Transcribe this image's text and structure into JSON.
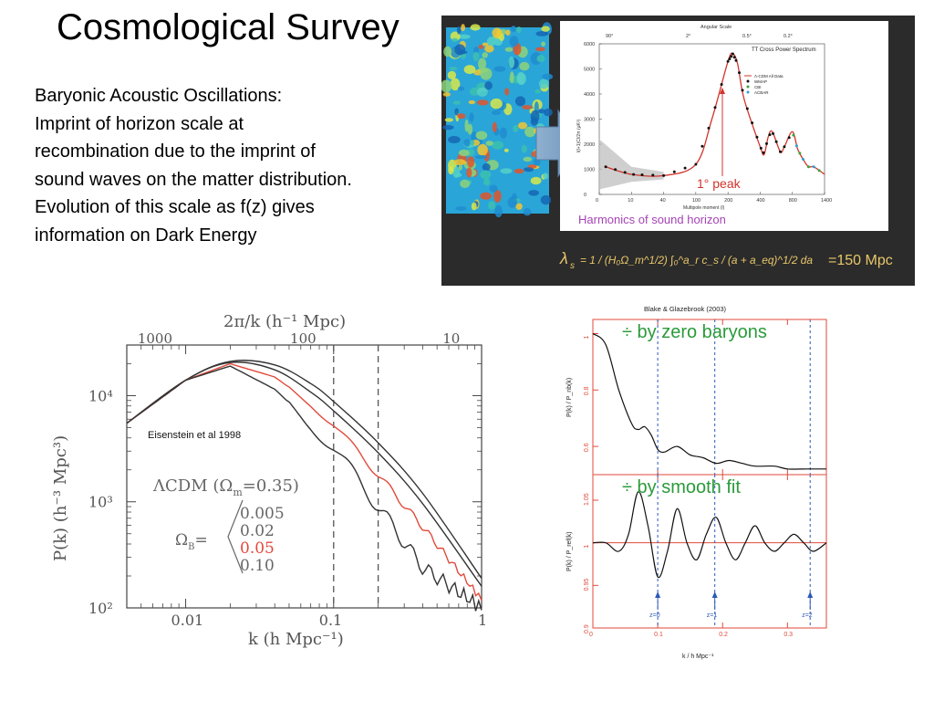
{
  "slide": {
    "title": "Cosmological Survey",
    "lines": [
      "Baryonic Acoustic Oscillations:",
      "Imprint of horizon scale at",
      "recombination due to the imprint of",
      "sound waves on the matter distribution.",
      "Evolution of this scale as f(z) gives",
      "information on Dark Energy"
    ]
  },
  "panel": {
    "formula_lhs": "λ",
    "formula_sub": "s",
    "formula_rest": "= 1 / (H₀Ω_m^1/2) ∫₀^a_r  c_s / (a + a_eq)^1/2  da",
    "formula_result": "=150 Mpc",
    "caption": "Harmonics of sound horizon",
    "peak_label": "1° peak"
  },
  "chart_data": [
    {
      "type": "line",
      "title": "TT Cross Power Spectrum",
      "top_axis_label": "Angular Scale",
      "top_ticks": [
        "90°",
        "2°",
        "0.5°",
        "0.2°"
      ],
      "xlabel": "Multipole moment (l)",
      "ylabel": "l(l+1)Cl/2π (μK²)",
      "x_ticks": [
        0,
        10,
        40,
        100,
        200,
        400,
        800,
        1400
      ],
      "y_ticks": [
        0,
        1000,
        2000,
        3000,
        4000,
        5000,
        6000
      ],
      "ylim": [
        0,
        6000
      ],
      "legend": [
        "Λ-CDM All Data",
        "WMAP",
        "CBI",
        "ACBAR"
      ],
      "series": [
        {
          "name": "Λ-CDM All Data",
          "x": [
            2,
            10,
            40,
            100,
            150,
            200,
            230,
            260,
            300,
            400,
            450,
            500,
            550,
            650,
            700,
            800,
            900,
            1000,
            1100,
            1200,
            1400
          ],
          "y": [
            1100,
            800,
            750,
            1200,
            3000,
            5300,
            5600,
            5200,
            3800,
            1900,
            1600,
            2300,
            2500,
            1700,
            1900,
            2500,
            1800,
            1400,
            1100,
            1100,
            800
          ]
        }
      ]
    },
    {
      "type": "line",
      "title": "",
      "top_axis_label": "2π/k (h⁻¹ Mpc)",
      "top_ticks": [
        "1000",
        "100",
        "10"
      ],
      "xlabel": "k (h Mpc⁻¹)",
      "ylabel": "P(k) (h⁻³ Mpc³)",
      "x_ticks": [
        "0.01",
        "0.1",
        "1"
      ],
      "y_ticks": [
        "10²",
        "10³",
        "10⁴"
      ],
      "xlim": [
        0.004,
        1
      ],
      "ylim": [
        100,
        30000
      ],
      "annotation": "Eisenstein et al 1998",
      "model_label": "ΛCDM (Ω",
      "model_sub": "m",
      "model_tail": "=0.35)",
      "omega_label": "Ω",
      "omega_sub": "B",
      "omega_eq": "=",
      "vlines": [
        0.1,
        0.2
      ],
      "series": [
        {
          "name": "0.005",
          "x": [
            0.004,
            0.01,
            0.02,
            0.04,
            0.07,
            0.1,
            0.2,
            0.4,
            1.0
          ],
          "y": [
            5500,
            14000,
            21000,
            19500,
            13000,
            8800,
            3600,
            1200,
            190
          ]
        },
        {
          "name": "0.02",
          "x": [
            0.004,
            0.01,
            0.02,
            0.04,
            0.07,
            0.1,
            0.2,
            0.4,
            1.0
          ],
          "y": [
            5500,
            14000,
            20500,
            17500,
            10800,
            7200,
            2900,
            960,
            160
          ]
        },
        {
          "name": "0.05",
          "x": [
            0.004,
            0.01,
            0.02,
            0.04,
            0.07,
            0.1,
            0.2,
            0.4,
            1.0
          ],
          "y": [
            5500,
            14000,
            20000,
            15000,
            8500,
            5300,
            1800,
            580,
            120
          ]
        },
        {
          "name": "0.10",
          "x": [
            0.004,
            0.01,
            0.02,
            0.04,
            0.07,
            0.1,
            0.2,
            0.4,
            1.0
          ],
          "y": [
            5500,
            14000,
            19000,
            11500,
            5500,
            3200,
            900,
            240,
            100
          ]
        }
      ]
    },
    {
      "type": "line",
      "title": "Blake & Glazebrook (2003)",
      "xlabel": "k / h Mpc⁻¹",
      "x_ticks": [
        0,
        0.1,
        0.2,
        0.3
      ],
      "xlim": [
        0,
        0.36
      ],
      "panels": [
        {
          "annotation": "÷ by zero baryons",
          "ylabel": "P(k) / P_nb(k)",
          "y_ticks": [
            0.6,
            0.8,
            1
          ],
          "ylim": [
            0.5,
            1.05
          ],
          "series": [
            {
              "name": "ratio",
              "x": [
                0,
                0.02,
                0.04,
                0.06,
                0.07,
                0.08,
                0.09,
                0.1,
                0.11,
                0.13,
                0.15,
                0.17,
                0.19,
                0.21,
                0.23,
                0.25,
                0.28,
                0.3,
                0.33,
                0.36
              ],
              "y": [
                1.0,
                0.96,
                0.8,
                0.68,
                0.66,
                0.67,
                0.64,
                0.59,
                0.58,
                0.6,
                0.57,
                0.56,
                0.54,
                0.55,
                0.54,
                0.53,
                0.53,
                0.52,
                0.52,
                0.52
              ]
            }
          ]
        },
        {
          "annotation": "÷ by smooth fit",
          "ylabel": "P(k) / P_ref(k)",
          "y_ticks": [
            0.9,
            0.95,
            1,
            1.05
          ],
          "ylim": [
            0.9,
            1.08
          ],
          "markers": [
            "z=0",
            "z=1",
            "z=2"
          ],
          "series": [
            {
              "name": "ratio",
              "x": [
                0,
                0.02,
                0.04,
                0.055,
                0.07,
                0.085,
                0.1,
                0.115,
                0.13,
                0.145,
                0.16,
                0.175,
                0.19,
                0.205,
                0.22,
                0.235,
                0.25,
                0.265,
                0.28,
                0.295,
                0.31,
                0.325,
                0.34,
                0.36
              ],
              "y": [
                1.0,
                1.0,
                0.99,
                1.01,
                1.06,
                1.02,
                0.96,
                0.99,
                1.04,
                1.0,
                0.98,
                1.01,
                1.03,
                1.0,
                0.98,
                1.0,
                1.02,
                1.0,
                0.99,
                1.0,
                1.01,
                1.0,
                0.99,
                1.0
              ]
            }
          ]
        }
      ]
    }
  ]
}
